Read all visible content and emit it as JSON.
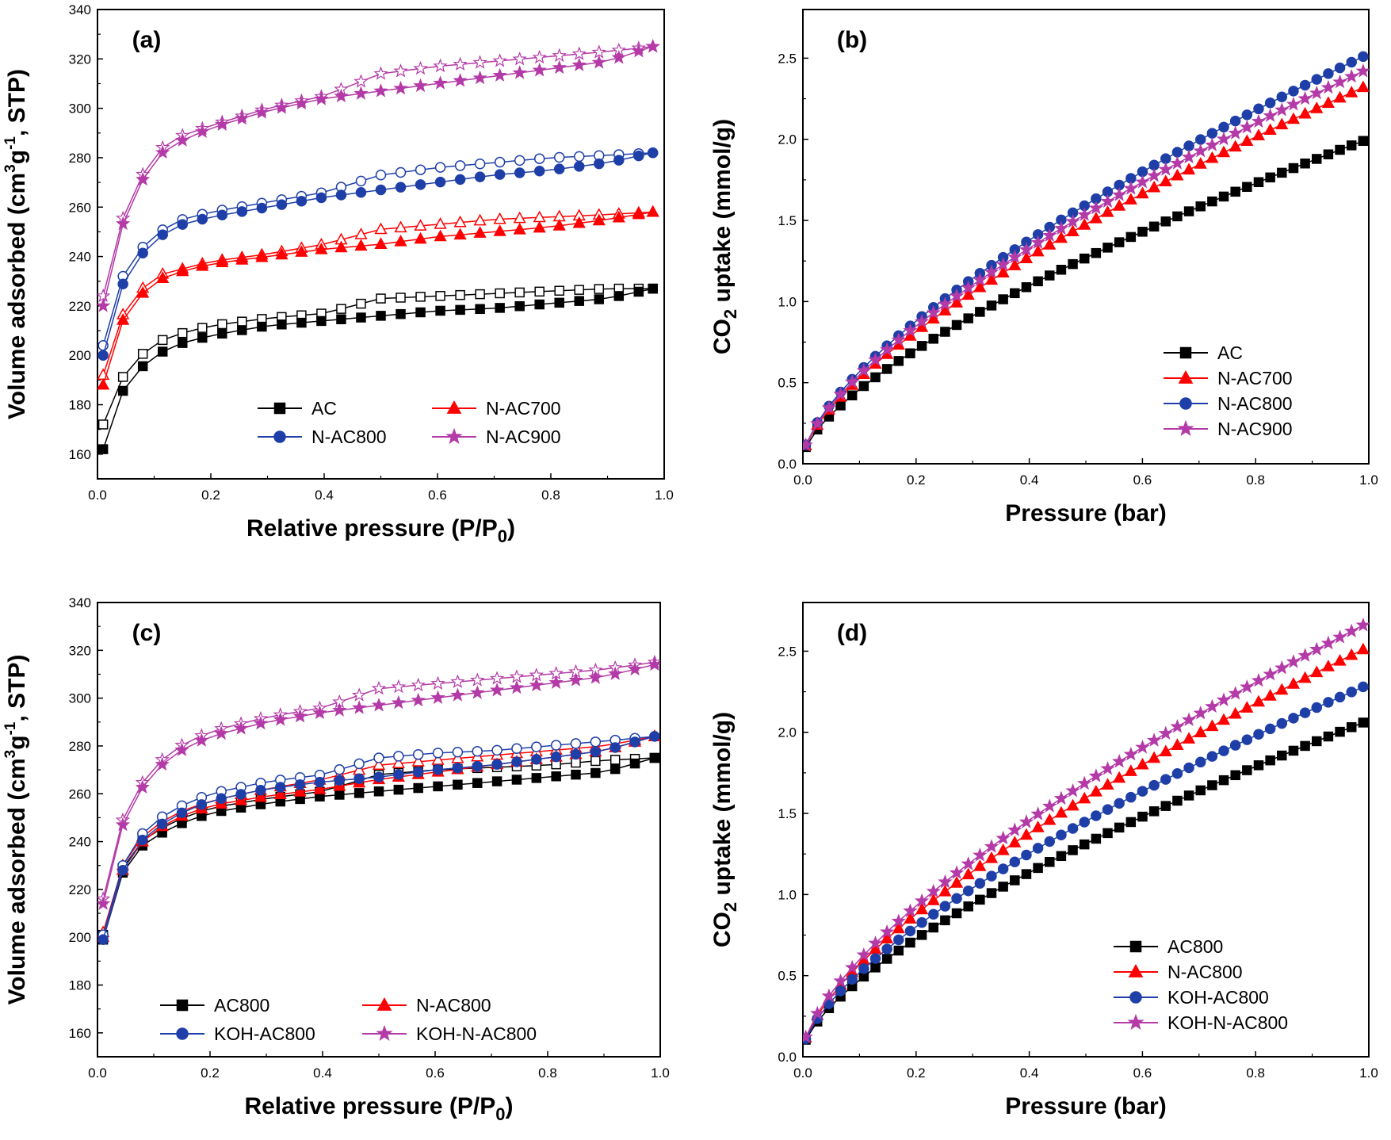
{
  "series_styles": {
    "black": "#000000",
    "red": "#ff0000",
    "blue": "#1f3fa8",
    "magenta": "#b33aa7"
  },
  "chart_data": [
    {
      "id": "a",
      "panel_label": "(a)",
      "type": "line",
      "xlabel_main": "Relative pressure (P/P",
      "xlabel_sub": "0",
      "xlabel_end": ")",
      "ylabel_pre": "Volume adsorbed (cm",
      "ylabel_sup1": "3",
      "ylabel_mid": "g",
      "ylabel_sup2": "-1",
      "ylabel_end": ", STP)",
      "xlim": [
        0,
        1.0
      ],
      "ylim": [
        150,
        340
      ],
      "xticks": [
        0.0,
        0.2,
        0.4,
        0.6,
        0.8,
        1.0
      ],
      "xtick_labels": [
        "0.0",
        "0.2",
        "0.4",
        "0.6",
        "0.8",
        "1.0"
      ],
      "yticks": [
        160,
        180,
        200,
        220,
        240,
        260,
        280,
        300,
        320,
        340
      ],
      "ytick_labels": [
        "160",
        "180",
        "200",
        "220",
        "240",
        "260",
        "280",
        "300",
        "320",
        "340"
      ],
      "legend_layout": "two-column-lower-right",
      "series": [
        {
          "name": "AC",
          "color_key": "black",
          "marker": "square",
          "x": [
            0.01,
            0.05,
            0.1,
            0.15,
            0.2,
            0.3,
            0.4,
            0.5,
            0.6,
            0.7,
            0.8,
            0.9,
            0.98
          ],
          "adsorption": [
            162,
            189,
            200,
            205,
            208,
            212,
            214,
            216,
            218,
            219,
            221,
            223,
            227
          ],
          "desorption": [
            172,
            194,
            205,
            209,
            212,
            215,
            217,
            223,
            224,
            225,
            226,
            227,
            227
          ]
        },
        {
          "name": "N-AC700",
          "color_key": "red",
          "marker": "triangle",
          "x": [
            0.01,
            0.05,
            0.1,
            0.15,
            0.2,
            0.3,
            0.4,
            0.5,
            0.6,
            0.7,
            0.8,
            0.9,
            0.98
          ],
          "adsorption": [
            188,
            218,
            230,
            234,
            237,
            240,
            243,
            245,
            248,
            250,
            252,
            255,
            258
          ],
          "desorption": [
            192,
            220,
            232,
            235,
            238,
            241,
            245,
            251,
            253,
            255,
            256,
            257,
            258
          ]
        },
        {
          "name": "N-AC800",
          "color_key": "blue",
          "marker": "circle",
          "x": [
            0.01,
            0.05,
            0.1,
            0.15,
            0.2,
            0.3,
            0.4,
            0.5,
            0.6,
            0.7,
            0.8,
            0.9,
            0.98
          ],
          "adsorption": [
            200,
            233,
            247,
            253,
            256,
            260,
            264,
            267,
            270,
            273,
            275,
            278,
            282
          ],
          "desorption": [
            204,
            236,
            249,
            255,
            258,
            262,
            266,
            273,
            276,
            278,
            280,
            281,
            282
          ]
        },
        {
          "name": "N-AC900",
          "color_key": "magenta",
          "marker": "star",
          "x": [
            0.01,
            0.05,
            0.1,
            0.15,
            0.2,
            0.3,
            0.4,
            0.5,
            0.6,
            0.7,
            0.8,
            0.9,
            0.98
          ],
          "adsorption": [
            220,
            258,
            280,
            287,
            292,
            299,
            304,
            307,
            310,
            313,
            316,
            319,
            325
          ],
          "desorption": [
            224,
            260,
            282,
            289,
            293,
            300,
            305,
            314,
            317,
            319,
            321,
            323,
            325
          ]
        }
      ],
      "legend_entries": [
        "AC",
        "N-AC700",
        "N-AC800",
        "N-AC900"
      ]
    },
    {
      "id": "b",
      "panel_label": "(b)",
      "type": "line",
      "xlabel_main": "Pressure (bar)",
      "ylabel_pre": "CO",
      "ylabel_sub": "2",
      "ylabel_end": " uptake (mmol/g)",
      "xlim": [
        0,
        1.0
      ],
      "ylim": [
        0,
        2.8
      ],
      "xticks": [
        0.0,
        0.2,
        0.4,
        0.6,
        0.8,
        1.0
      ],
      "xtick_labels": [
        "0.0",
        "0.2",
        "0.4",
        "0.6",
        "0.8",
        "1.0"
      ],
      "yticks": [
        0.0,
        0.5,
        1.0,
        1.5,
        2.0,
        2.5
      ],
      "ytick_labels": [
        "0.0",
        "0.5",
        "1.0",
        "1.5",
        "2.0",
        "2.5"
      ],
      "legend_layout": "one-column-right",
      "series": [
        {
          "name": "AC",
          "color_key": "black",
          "marker": "square",
          "final": 1.99
        },
        {
          "name": "N-AC700",
          "color_key": "red",
          "marker": "triangle",
          "final": 2.32
        },
        {
          "name": "N-AC800",
          "color_key": "blue",
          "marker": "circle",
          "final": 2.51
        },
        {
          "name": "N-AC900",
          "color_key": "magenta",
          "marker": "star",
          "final": 2.42
        }
      ],
      "legend_entries": [
        "AC",
        "N-AC700",
        "N-AC800",
        "N-AC900"
      ]
    },
    {
      "id": "c",
      "panel_label": "(c)",
      "type": "line",
      "xlabel_main": "Relative pressure (P/P",
      "xlabel_sub": "0",
      "xlabel_end": ")",
      "ylabel_pre": "Volume adsorbed (cm",
      "ylabel_sup1": "3",
      "ylabel_mid": "g",
      "ylabel_sup2": "-1",
      "ylabel_end": ", STP)",
      "xlim": [
        0,
        1.0
      ],
      "ylim": [
        150,
        340
      ],
      "xticks": [
        0.0,
        0.2,
        0.4,
        0.6,
        0.8,
        1.0
      ],
      "xtick_labels": [
        "0.0",
        "0.2",
        "0.4",
        "0.6",
        "0.8",
        "1.0"
      ],
      "yticks": [
        160,
        180,
        200,
        220,
        240,
        260,
        280,
        300,
        320,
        340
      ],
      "ytick_labels": [
        "160",
        "180",
        "200",
        "220",
        "240",
        "260",
        "280",
        "300",
        "320",
        "340"
      ],
      "legend_layout": "two-column-bottom",
      "series": [
        {
          "name": "AC800",
          "color_key": "black",
          "marker": "square",
          "x": [
            0.01,
            0.03,
            0.06,
            0.09,
            0.13,
            0.2,
            0.3,
            0.4,
            0.5,
            0.6,
            0.7,
            0.8,
            0.9,
            0.99
          ],
          "adsorption": [
            199,
            219,
            235,
            240,
            246,
            252,
            256,
            259,
            261,
            263,
            265,
            267,
            269,
            275
          ],
          "desorption": [
            201,
            221,
            237,
            242,
            248,
            254,
            258,
            261,
            268,
            270,
            271,
            272,
            274,
            275
          ]
        },
        {
          "name": "N-AC800",
          "color_key": "red",
          "marker": "triangle",
          "x": [
            0.01,
            0.03,
            0.06,
            0.09,
            0.13,
            0.2,
            0.3,
            0.4,
            0.5,
            0.6,
            0.7,
            0.8,
            0.9,
            0.99
          ],
          "adsorption": [
            200,
            220,
            236,
            242,
            249,
            255,
            259,
            262,
            266,
            269,
            272,
            275,
            278,
            284
          ],
          "desorption": [
            202,
            222,
            238,
            244,
            251,
            257,
            262,
            266,
            272,
            274,
            276,
            278,
            280,
            284
          ]
        },
        {
          "name": "KOH-AC800",
          "color_key": "blue",
          "marker": "circle",
          "x": [
            0.01,
            0.03,
            0.06,
            0.09,
            0.13,
            0.2,
            0.3,
            0.4,
            0.5,
            0.6,
            0.7,
            0.8,
            0.9,
            0.99
          ],
          "adsorption": [
            199,
            220,
            236,
            243,
            250,
            257,
            262,
            265,
            267,
            270,
            272,
            275,
            278,
            284
          ],
          "desorption": [
            201,
            222,
            238,
            246,
            253,
            260,
            265,
            268,
            275,
            277,
            278,
            280,
            282,
            284
          ]
        },
        {
          "name": "KOH-N-AC800",
          "color_key": "magenta",
          "marker": "star",
          "x": [
            0.01,
            0.03,
            0.06,
            0.09,
            0.13,
            0.2,
            0.3,
            0.4,
            0.5,
            0.6,
            0.7,
            0.8,
            0.9,
            0.99
          ],
          "adsorption": [
            214,
            238,
            256,
            266,
            276,
            284,
            290,
            294,
            297,
            300,
            303,
            306,
            309,
            314
          ],
          "desorption": [
            216,
            240,
            258,
            268,
            278,
            286,
            292,
            296,
            304,
            306,
            308,
            310,
            312,
            315
          ]
        }
      ],
      "legend_entries": [
        "AC800",
        "N-AC800",
        "KOH-AC800",
        "KOH-N-AC800"
      ]
    },
    {
      "id": "d",
      "panel_label": "(d)",
      "type": "line",
      "xlabel_main": "Pressure (bar)",
      "ylabel_pre": "CO",
      "ylabel_sub": "2",
      "ylabel_end": " uptake (mmol/g)",
      "xlim": [
        0,
        1.0
      ],
      "ylim": [
        0,
        2.8
      ],
      "xticks": [
        0.0,
        0.2,
        0.4,
        0.6,
        0.8,
        1.0
      ],
      "xtick_labels": [
        "0.0",
        "0.2",
        "0.4",
        "0.6",
        "0.8",
        "1.0"
      ],
      "yticks": [
        0.0,
        0.5,
        1.0,
        1.5,
        2.0,
        2.5
      ],
      "ytick_labels": [
        "0.0",
        "0.5",
        "1.0",
        "1.5",
        "2.0",
        "2.5"
      ],
      "legend_layout": "one-column-right",
      "series": [
        {
          "name": "AC800",
          "color_key": "black",
          "marker": "square",
          "final": 2.06
        },
        {
          "name": "N-AC800",
          "color_key": "red",
          "marker": "triangle",
          "final": 2.51
        },
        {
          "name": "KOH-AC800",
          "color_key": "blue",
          "marker": "circle",
          "final": 2.28
        },
        {
          "name": "KOH-N-AC800",
          "color_key": "magenta",
          "marker": "star",
          "final": 2.66
        }
      ],
      "legend_entries": [
        "AC800",
        "N-AC800",
        "KOH-AC800",
        "KOH-N-AC800"
      ]
    }
  ]
}
